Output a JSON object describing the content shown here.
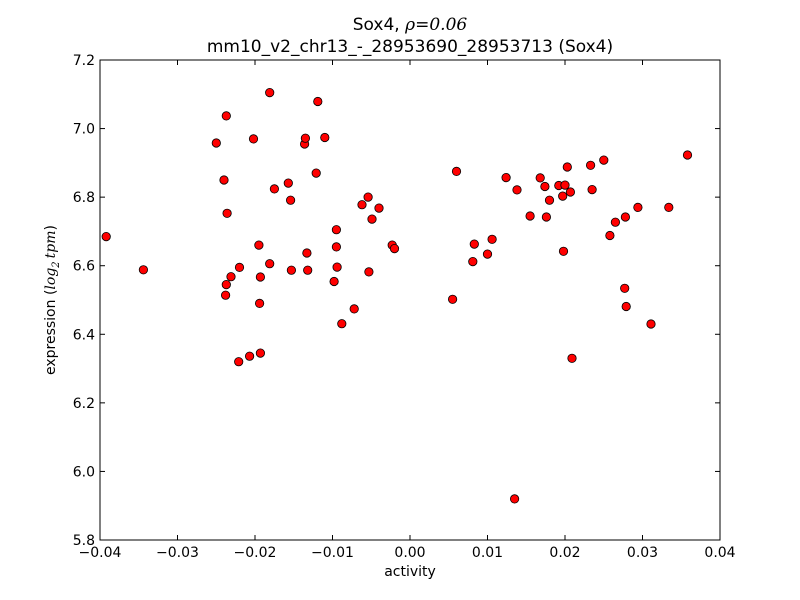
{
  "chart_data": {
    "type": "scatter",
    "title_gene": "Sox4,",
    "title_rho_symbol": "ρ",
    "title_rho_value": "=0.06",
    "subtitle": "mm10_v2_chr13_-_28953690_28953713 (Sox4)",
    "xlabel": "activity",
    "ylabel_prefix": "expression (",
    "ylabel_log": "log",
    "ylabel_sub": "2",
    "ylabel_tpm": "tpm",
    "ylabel_suffix": ")",
    "xlim": [
      -0.04,
      0.04
    ],
    "ylim": [
      5.8,
      7.2
    ],
    "xticks": [
      -0.04,
      -0.03,
      -0.02,
      -0.01,
      0.0,
      0.01,
      0.02,
      0.03,
      0.04
    ],
    "xtick_labels": [
      "−0.04",
      "−0.03",
      "−0.02",
      "−0.01",
      "0.00",
      "0.01",
      "0.02",
      "0.03",
      "0.04"
    ],
    "yticks": [
      5.8,
      6.0,
      6.2,
      6.4,
      6.6,
      6.8,
      7.0,
      7.2
    ],
    "ytick_labels": [
      "5.8",
      "6.0",
      "6.2",
      "6.4",
      "6.6",
      "6.8",
      "7.0",
      "7.2"
    ],
    "grid": false,
    "marker_color": "#ff0000",
    "marker_edge": "#000000",
    "points": [
      [
        -0.0392,
        6.685
      ],
      [
        -0.0344,
        6.588
      ],
      [
        -0.025,
        6.958
      ],
      [
        -0.024,
        6.85
      ],
      [
        -0.0237,
        7.037
      ],
      [
        -0.0236,
        6.753
      ],
      [
        -0.0237,
        6.545
      ],
      [
        -0.0238,
        6.514
      ],
      [
        -0.0231,
        6.568
      ],
      [
        -0.0221,
        6.32
      ],
      [
        -0.022,
        6.595
      ],
      [
        -0.0207,
        6.336
      ],
      [
        -0.0202,
        6.97
      ],
      [
        -0.0195,
        6.66
      ],
      [
        -0.0194,
        6.49
      ],
      [
        -0.0193,
        6.345
      ],
      [
        -0.0193,
        6.567
      ],
      [
        -0.0181,
        7.105
      ],
      [
        -0.0181,
        6.606
      ],
      [
        -0.0175,
        6.824
      ],
      [
        -0.0157,
        6.841
      ],
      [
        -0.0154,
        6.791
      ],
      [
        -0.0153,
        6.587
      ],
      [
        -0.0136,
        6.955
      ],
      [
        -0.0135,
        6.972
      ],
      [
        -0.0133,
        6.637
      ],
      [
        -0.0132,
        6.587
      ],
      [
        -0.0121,
        6.87
      ],
      [
        -0.0119,
        7.079
      ],
      [
        -0.011,
        6.974
      ],
      [
        -0.0098,
        6.554
      ],
      [
        -0.0095,
        6.705
      ],
      [
        -0.0095,
        6.655
      ],
      [
        -0.0094,
        6.596
      ],
      [
        -0.0088,
        6.431
      ],
      [
        -0.0072,
        6.474
      ],
      [
        -0.0062,
        6.778
      ],
      [
        -0.0054,
        6.8
      ],
      [
        -0.0053,
        6.582
      ],
      [
        -0.0049,
        6.736
      ],
      [
        -0.004,
        6.768
      ],
      [
        -0.0023,
        6.66
      ],
      [
        -0.002,
        6.65
      ],
      [
        0.0055,
        6.502
      ],
      [
        0.006,
        6.875
      ],
      [
        0.0081,
        6.612
      ],
      [
        0.0083,
        6.663
      ],
      [
        0.01,
        6.634
      ],
      [
        0.0106,
        6.677
      ],
      [
        0.0124,
        6.857
      ],
      [
        0.0135,
        5.92
      ],
      [
        0.0138,
        6.821
      ],
      [
        0.0155,
        6.745
      ],
      [
        0.0168,
        6.856
      ],
      [
        0.0174,
        6.831
      ],
      [
        0.0176,
        6.742
      ],
      [
        0.018,
        6.791
      ],
      [
        0.0192,
        6.834
      ],
      [
        0.0197,
        6.803
      ],
      [
        0.0198,
        6.642
      ],
      [
        0.02,
        6.835
      ],
      [
        0.0203,
        6.888
      ],
      [
        0.0207,
        6.815
      ],
      [
        0.0209,
        6.33
      ],
      [
        0.0233,
        6.893
      ],
      [
        0.0235,
        6.822
      ],
      [
        0.025,
        6.908
      ],
      [
        0.0258,
        6.688
      ],
      [
        0.0265,
        6.727
      ],
      [
        0.0277,
        6.534
      ],
      [
        0.0278,
        6.742
      ],
      [
        0.0279,
        6.481
      ],
      [
        0.0294,
        6.77
      ],
      [
        0.0311,
        6.43
      ],
      [
        0.0334,
        6.77
      ],
      [
        0.0358,
        6.923
      ]
    ]
  }
}
